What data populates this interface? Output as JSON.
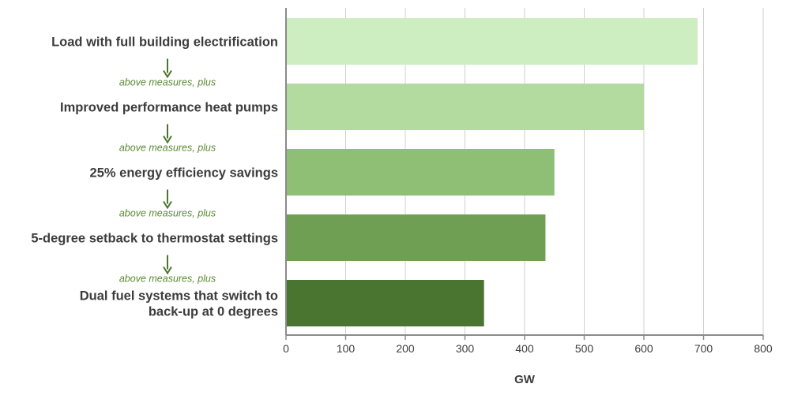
{
  "chart_data": {
    "type": "bar",
    "orientation": "horizontal",
    "categories": [
      [
        "Load with full building electrification"
      ],
      [
        "Improved performance heat pumps"
      ],
      [
        "25% energy efficiency savings"
      ],
      [
        "5-degree setback to thermostat settings"
      ],
      [
        "Dual fuel systems that switch to",
        "back-up at 0 degrees"
      ]
    ],
    "values": [
      690,
      600,
      450,
      435,
      332
    ],
    "bar_colors": [
      "#cdeec0",
      "#b3dba0",
      "#8ebf75",
      "#6f9f53",
      "#4a7530"
    ],
    "step_note": "above measures, plus",
    "xlabel": "GW",
    "xlim": [
      0,
      800
    ],
    "xticks": [
      0,
      100,
      200,
      300,
      400,
      500,
      600,
      700,
      800
    ],
    "grid": true,
    "arrow_color": "#4a7530"
  }
}
